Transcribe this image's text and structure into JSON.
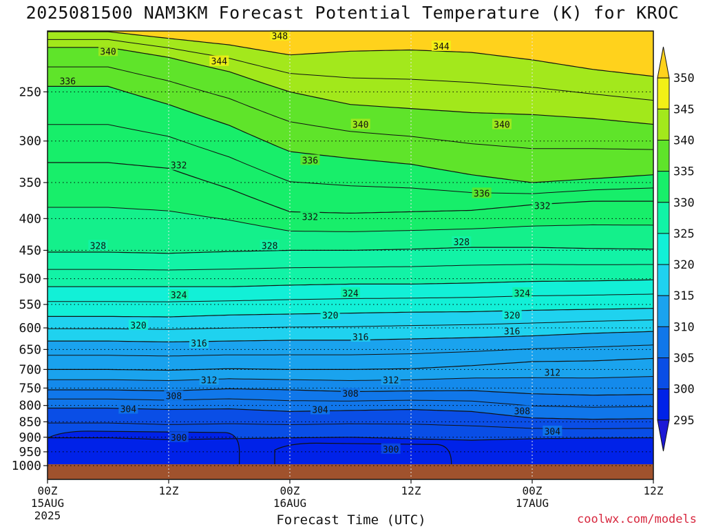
{
  "title": "2025081500 NAM3KM Forecast Potential Temperature (K) for KROC",
  "xlabel": "Forecast Time (UTC)",
  "credit": "coolwx.com/models",
  "colors": {
    "ground": "#a0522d",
    "bands": [
      {
        "min": 290,
        "max": 295,
        "color": "#1d19d6"
      },
      {
        "min": 295,
        "max": 300,
        "color": "#0022e8"
      },
      {
        "min": 300,
        "max": 305,
        "color": "#0a4ee6"
      },
      {
        "min": 305,
        "max": 310,
        "color": "#1077ea"
      },
      {
        "min": 310,
        "max": 315,
        "color": "#1aa3ee"
      },
      {
        "min": 315,
        "max": 320,
        "color": "#1fd2ef"
      },
      {
        "min": 320,
        "max": 325,
        "color": "#12f0d7"
      },
      {
        "min": 325,
        "max": 330,
        "color": "#12f3a6"
      },
      {
        "min": 330,
        "max": 335,
        "color": "#18ee6a"
      },
      {
        "min": 335,
        "max": 340,
        "color": "#5fe42a"
      },
      {
        "min": 340,
        "max": 345,
        "color": "#a3e81c"
      },
      {
        "min": 345,
        "max": 350,
        "color": "#f2f016"
      },
      {
        "min": 350,
        "max": 355,
        "color": "#ffd21c"
      }
    ]
  },
  "chart_data": {
    "type": "heatmap",
    "title": "2025081500 NAM3KM Forecast Potential Temperature (K) for KROC",
    "xlabel": "Forecast Time (UTC)",
    "ylabel": "",
    "x_units": "forecast hour",
    "xlim": [
      0,
      60
    ],
    "x_ticks": [
      {
        "hour": 0,
        "label": "00Z",
        "date": "15AUG",
        "year": "2025"
      },
      {
        "hour": 12,
        "label": "12Z",
        "date": "",
        "year": ""
      },
      {
        "hour": 24,
        "label": "00Z",
        "date": "16AUG",
        "year": ""
      },
      {
        "hour": 36,
        "label": "12Z",
        "date": "",
        "year": ""
      },
      {
        "hour": 48,
        "label": "00Z",
        "date": "17AUG",
        "year": ""
      },
      {
        "hour": 60,
        "label": "12Z",
        "date": "",
        "year": ""
      }
    ],
    "y_units": "hPa",
    "y_scale": "log",
    "ylim": [
      1000,
      200
    ],
    "y_ticks": [
      250,
      300,
      350,
      400,
      450,
      500,
      550,
      600,
      650,
      700,
      750,
      800,
      850,
      900,
      950,
      1000
    ],
    "grid": true,
    "colorbar": {
      "levels": [
        295,
        300,
        305,
        310,
        315,
        320,
        325,
        330,
        335,
        340,
        345,
        350
      ],
      "extend": "both"
    },
    "contours": [
      {
        "level": 300,
        "pressure": [
          902,
          902,
          908,
          905,
          902,
          900,
          905,
          910,
          905,
          903,
          902
        ]
      },
      {
        "level": 304,
        "pressure": [
          808,
          808,
          812,
          810,
          818,
          815,
          812,
          818,
          838,
          842,
          840
        ]
      },
      {
        "level": 308,
        "pressure": [
          755,
          755,
          758,
          752,
          755,
          760,
          758,
          757,
          766,
          770,
          768
        ]
      },
      {
        "level": 312,
        "pressure": [
          700,
          700,
          702,
          698,
          700,
          700,
          698,
          690,
          680,
          678,
          672
        ]
      },
      {
        "level": 316,
        "pressure": [
          630,
          630,
          632,
          630,
          628,
          628,
          625,
          622,
          618,
          612,
          608
        ]
      },
      {
        "level": 320,
        "pressure": [
          575,
          575,
          576,
          572,
          570,
          568,
          566,
          565,
          562,
          560,
          558
        ]
      },
      {
        "level": 324,
        "pressure": [
          515,
          515,
          515,
          515,
          512,
          510,
          510,
          508,
          505,
          504,
          502
        ]
      },
      {
        "level": 328,
        "pressure": [
          453,
          453,
          455,
          452,
          450,
          450,
          448,
          445,
          445,
          447,
          448
        ]
      },
      {
        "level": 332,
        "pressure": [
          325,
          325,
          332,
          358,
          390,
          392,
          390,
          388,
          380,
          375,
          375
        ]
      },
      {
        "level": 336,
        "pressure": [
          245,
          245,
          262,
          283,
          312,
          320,
          327,
          340,
          350,
          345,
          340
        ]
      },
      {
        "level": 340,
        "pressure": [
          212,
          212,
          220,
          232,
          250,
          262,
          266,
          270,
          272,
          276,
          282
        ]
      },
      {
        "level": 344,
        "pressure": [
          200,
          200,
          205,
          210,
          218,
          215,
          214,
          216,
          222,
          230,
          236
        ]
      }
    ],
    "series": [
      {
        "name": "300",
        "label_hour": 13,
        "label_pressure": 900
      },
      {
        "name": "300",
        "label_hour": 34,
        "label_pressure": 940
      },
      {
        "name": "304",
        "label_hour": 8,
        "label_pressure": 810
      },
      {
        "name": "304",
        "label_hour": 27,
        "label_pressure": 812
      },
      {
        "name": "304",
        "label_hour": 50,
        "label_pressure": 880
      },
      {
        "name": "308",
        "label_hour": 12.5,
        "label_pressure": 772
      },
      {
        "name": "308",
        "label_hour": 30,
        "label_pressure": 765
      },
      {
        "name": "308",
        "label_hour": 47,
        "label_pressure": 816
      },
      {
        "name": "312",
        "label_hour": 16,
        "label_pressure": 728
      },
      {
        "name": "312",
        "label_hour": 34,
        "label_pressure": 728
      },
      {
        "name": "312",
        "label_hour": 50,
        "label_pressure": 707
      },
      {
        "name": "316",
        "label_hour": 15,
        "label_pressure": 635
      },
      {
        "name": "316",
        "label_hour": 31,
        "label_pressure": 620
      },
      {
        "name": "316",
        "label_hour": 46,
        "label_pressure": 607
      },
      {
        "name": "320",
        "label_hour": 9,
        "label_pressure": 594
      },
      {
        "name": "320",
        "label_hour": 28,
        "label_pressure": 572
      },
      {
        "name": "320",
        "label_hour": 46,
        "label_pressure": 572
      },
      {
        "name": "324",
        "label_hour": 13,
        "label_pressure": 531
      },
      {
        "name": "324",
        "label_hour": 30,
        "label_pressure": 527
      },
      {
        "name": "324",
        "label_hour": 47,
        "label_pressure": 527
      },
      {
        "name": "328",
        "label_hour": 5,
        "label_pressure": 442
      },
      {
        "name": "328",
        "label_hour": 22,
        "label_pressure": 442
      },
      {
        "name": "328",
        "label_hour": 41,
        "label_pressure": 436
      },
      {
        "name": "332",
        "label_hour": 13,
        "label_pressure": 328
      },
      {
        "name": "332",
        "label_hour": 26,
        "label_pressure": 397
      },
      {
        "name": "332",
        "label_hour": 49,
        "label_pressure": 381
      },
      {
        "name": "336",
        "label_hour": 2,
        "label_pressure": 240
      },
      {
        "name": "336",
        "label_hour": 26,
        "label_pressure": 322
      },
      {
        "name": "336",
        "label_hour": 43,
        "label_pressure": 364
      },
      {
        "name": "340",
        "label_hour": 6,
        "label_pressure": 215
      },
      {
        "name": "340",
        "label_hour": 31,
        "label_pressure": 282
      },
      {
        "name": "340",
        "label_hour": 45,
        "label_pressure": 282
      },
      {
        "name": "344",
        "label_hour": 17,
        "label_pressure": 223
      },
      {
        "name": "344",
        "label_hour": 39,
        "label_pressure": 211
      },
      {
        "name": "348",
        "label_hour": 23,
        "label_pressure": 203
      }
    ],
    "low_regions": [
      {
        "level": 300,
        "hours": [
          0,
          19
        ],
        "pressure": [
          880,
          1000
        ]
      },
      {
        "level": 300,
        "hours": [
          22.5,
          40
        ],
        "pressure": [
          920,
          1000
        ]
      }
    ]
  }
}
